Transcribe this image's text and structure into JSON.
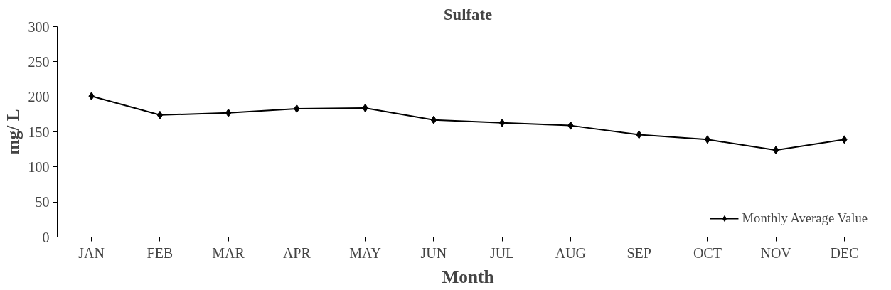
{
  "chart_data": {
    "type": "line",
    "title": "Sulfate",
    "xlabel": "Month",
    "ylabel": "mg/ L",
    "categories": [
      "JAN",
      "FEB",
      "MAR",
      "APR",
      "MAY",
      "JUN",
      "JUL",
      "AUG",
      "SEP",
      "OCT",
      "NOV",
      "DEC"
    ],
    "series": [
      {
        "name": "Monthly Average Value",
        "color": "#000000",
        "values": [
          201,
          174,
          177,
          183,
          184,
          167,
          163,
          159,
          146,
          139,
          124,
          139
        ]
      }
    ],
    "ylim": [
      0,
      300
    ],
    "yticks": [
      0,
      50,
      100,
      150,
      200,
      250,
      300
    ],
    "grid": false,
    "legend": "bottom right",
    "marker": "diamond",
    "line_style": "solid"
  }
}
